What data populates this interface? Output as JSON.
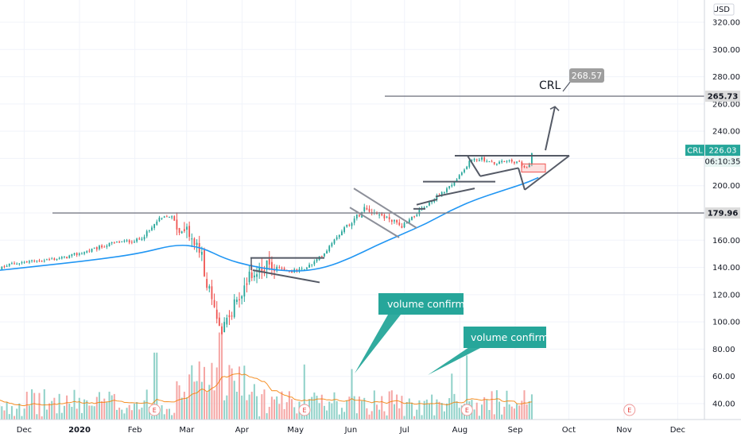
{
  "chart_data": {
    "type": "candlestick",
    "symbol": "CRL",
    "currency": "USD",
    "y_axis": {
      "min": 30,
      "max": 330,
      "ticks": [
        40,
        60,
        80,
        100,
        120,
        140,
        160,
        180,
        200,
        220,
        240,
        260,
        280,
        300,
        320
      ],
      "tick_labels": [
        "40.00",
        "60.00",
        "80.00",
        "100.00",
        "120.00",
        "140.00",
        "160.00",
        "180.00",
        "200.00",
        "220.00",
        "240.00",
        "260.00",
        "280.00",
        "300.00",
        "320.00"
      ]
    },
    "x_axis": {
      "labels": [
        {
          "label": "Dec",
          "date": "2019-12-01"
        },
        {
          "label": "2020",
          "date": "2020-01-01",
          "bold": true
        },
        {
          "label": "Feb",
          "date": "2020-02-01"
        },
        {
          "label": "Mar",
          "date": "2020-03-01"
        },
        {
          "label": "Apr",
          "date": "2020-04-01"
        },
        {
          "label": "May",
          "date": "2020-05-01"
        },
        {
          "label": "Jun",
          "date": "2020-06-01"
        },
        {
          "label": "Jul",
          "date": "2020-07-01"
        },
        {
          "label": "Aug",
          "date": "2020-08-01"
        },
        {
          "label": "Sep",
          "date": "2020-09-01"
        },
        {
          "label": "Oct",
          "date": "2020-10-01"
        },
        {
          "label": "Nov",
          "date": "2020-11-01"
        },
        {
          "label": "Dec",
          "date": "2020-12-01"
        }
      ]
    },
    "price_path": [
      [
        "2019-11-11",
        136
      ],
      [
        "2019-11-25",
        143
      ],
      [
        "2019-12-09",
        145
      ],
      [
        "2019-12-23",
        147
      ],
      [
        "2020-01-06",
        152
      ],
      [
        "2020-01-20",
        158
      ],
      [
        "2020-02-03",
        160
      ],
      [
        "2020-02-10",
        168
      ],
      [
        "2020-02-14",
        175
      ],
      [
        "2020-02-21",
        178
      ],
      [
        "2020-02-26",
        168
      ],
      [
        "2020-03-02",
        165
      ],
      [
        "2020-03-09",
        150
      ],
      [
        "2020-03-12",
        130
      ],
      [
        "2020-03-16",
        110
      ],
      [
        "2020-03-20",
        95
      ],
      [
        "2020-03-24",
        103
      ],
      [
        "2020-03-30",
        118
      ],
      [
        "2020-04-06",
        135
      ],
      [
        "2020-04-13",
        140
      ],
      [
        "2020-04-20",
        141
      ],
      [
        "2020-04-27",
        137
      ],
      [
        "2020-05-04",
        138
      ],
      [
        "2020-05-11",
        143
      ],
      [
        "2020-05-18",
        152
      ],
      [
        "2020-05-22",
        160
      ],
      [
        "2020-05-29",
        170
      ],
      [
        "2020-06-05",
        178
      ],
      [
        "2020-06-08",
        185
      ],
      [
        "2020-06-15",
        180
      ],
      [
        "2020-06-22",
        176
      ],
      [
        "2020-06-29",
        170
      ],
      [
        "2020-07-06",
        178
      ],
      [
        "2020-07-13",
        185
      ],
      [
        "2020-07-20",
        193
      ],
      [
        "2020-07-27",
        200
      ],
      [
        "2020-08-03",
        210
      ],
      [
        "2020-08-06",
        218
      ],
      [
        "2020-08-13",
        220
      ],
      [
        "2020-08-20",
        216
      ],
      [
        "2020-08-27",
        218
      ],
      [
        "2020-09-03",
        217
      ],
      [
        "2020-09-08",
        212
      ],
      [
        "2020-09-11",
        226
      ]
    ],
    "moving_average_path": [
      [
        "2019-11-11",
        137
      ],
      [
        "2019-12-09",
        141
      ],
      [
        "2020-01-06",
        145
      ],
      [
        "2020-02-03",
        150
      ],
      [
        "2020-02-24",
        157
      ],
      [
        "2020-03-09",
        155
      ],
      [
        "2020-03-23",
        146
      ],
      [
        "2020-04-06",
        141
      ],
      [
        "2020-04-20",
        138
      ],
      [
        "2020-05-04",
        137
      ],
      [
        "2020-05-18",
        140
      ],
      [
        "2020-06-01",
        147
      ],
      [
        "2020-06-15",
        156
      ],
      [
        "2020-06-29",
        164
      ],
      [
        "2020-07-13",
        172
      ],
      [
        "2020-07-27",
        182
      ],
      [
        "2020-08-10",
        190
      ],
      [
        "2020-08-24",
        196
      ],
      [
        "2020-09-07",
        202
      ],
      [
        "2020-09-14",
        206
      ]
    ],
    "horizontal_levels": [
      {
        "value": 179.96,
        "label": "179.96"
      },
      {
        "value": 265.73,
        "label": "265.73"
      }
    ],
    "last_price": {
      "value": 226.03,
      "label": "CRL",
      "price_text": "226.03",
      "countdown": "06:10:35",
      "color": "#26a69a"
    },
    "target": {
      "value": 268.57,
      "label": "268.57",
      "text": "CRL"
    },
    "annotations": [
      {
        "text": "volume confirm",
        "date": "2020-06-01"
      },
      {
        "text": "volume confirm",
        "date": "2020-07-27"
      }
    ],
    "earnings_markers": [
      {
        "label": "E",
        "date": "2020-02-12"
      },
      {
        "label": "E",
        "date": "2020-05-06"
      },
      {
        "label": "E",
        "date": "2020-08-05"
      },
      {
        "label": "E",
        "date": "2020-11-04",
        "future": true
      }
    ],
    "colors": {
      "up": "#26a69a",
      "down": "#ef5350",
      "ma": "#2196f3",
      "volume_up": "#8fd1c8",
      "volume_down": "#f5a6a4",
      "volume_ma": "#f57c00",
      "callout": "#26a69a",
      "level": "#787b86",
      "pattern": "#555a66"
    }
  }
}
